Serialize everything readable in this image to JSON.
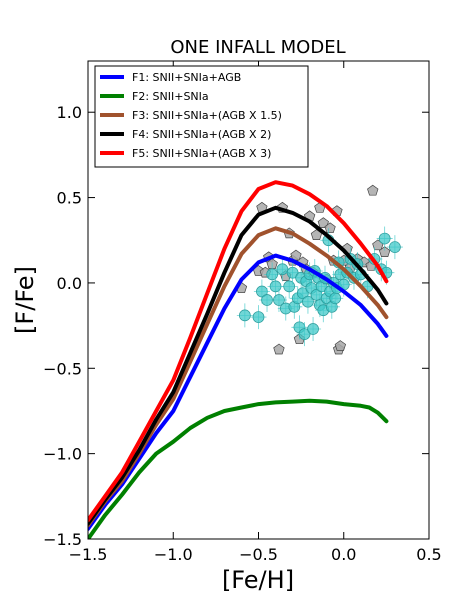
{
  "chart_data": {
    "type": "line",
    "title": "ONE INFALL MODEL",
    "xlabel": "[Fe/H]",
    "ylabel": "[F/Fe]",
    "xlim": [
      -1.5,
      0.5
    ],
    "ylim": [
      -1.5,
      1.3
    ],
    "xticks": [
      -1.5,
      -1.0,
      -0.5,
      0.0,
      0.5
    ],
    "xtick_labels": [
      "−1.5",
      "−1.0",
      "−0.5",
      "0.0",
      "0.5"
    ],
    "yticks": [
      -1.5,
      -1.0,
      -0.5,
      0.0,
      0.5,
      1.0
    ],
    "ytick_labels": [
      "−1.5",
      "−1.0",
      "−0.5",
      "0.0",
      "0.5",
      "1.0"
    ],
    "grid": false,
    "legend_position": "top-left",
    "series": [
      {
        "name": "F1: SNII+SNIa+AGB",
        "color": "#0000ff",
        "points": [
          [
            -1.5,
            -1.44
          ],
          [
            -1.4,
            -1.3
          ],
          [
            -1.3,
            -1.18
          ],
          [
            -1.2,
            -1.03
          ],
          [
            -1.1,
            -0.88
          ],
          [
            -1.0,
            -0.75
          ],
          [
            -0.9,
            -0.55
          ],
          [
            -0.8,
            -0.35
          ],
          [
            -0.7,
            -0.15
          ],
          [
            -0.6,
            0.02
          ],
          [
            -0.5,
            0.12
          ],
          [
            -0.4,
            0.16
          ],
          [
            -0.3,
            0.13
          ],
          [
            -0.2,
            0.08
          ],
          [
            -0.1,
            0.02
          ],
          [
            0.0,
            -0.05
          ],
          [
            0.1,
            -0.13
          ],
          [
            0.2,
            -0.24
          ],
          [
            0.25,
            -0.31
          ]
        ]
      },
      {
        "name": "F2: SNII+SNIa",
        "color": "#008000",
        "points": [
          [
            -1.5,
            -1.5
          ],
          [
            -1.4,
            -1.36
          ],
          [
            -1.3,
            -1.24
          ],
          [
            -1.2,
            -1.11
          ],
          [
            -1.1,
            -1.0
          ],
          [
            -1.0,
            -0.93
          ],
          [
            -0.9,
            -0.85
          ],
          [
            -0.8,
            -0.79
          ],
          [
            -0.7,
            -0.75
          ],
          [
            -0.6,
            -0.73
          ],
          [
            -0.5,
            -0.71
          ],
          [
            -0.4,
            -0.7
          ],
          [
            -0.3,
            -0.695
          ],
          [
            -0.2,
            -0.69
          ],
          [
            -0.1,
            -0.695
          ],
          [
            0.0,
            -0.71
          ],
          [
            0.1,
            -0.72
          ],
          [
            0.15,
            -0.73
          ],
          [
            0.2,
            -0.76
          ],
          [
            0.25,
            -0.81
          ]
        ]
      },
      {
        "name": "F3: SNII+SNIa+(AGB X 1.5)",
        "color": "#a0522d",
        "points": [
          [
            -1.5,
            -1.42
          ],
          [
            -1.4,
            -1.28
          ],
          [
            -1.3,
            -1.16
          ],
          [
            -1.2,
            -1.0
          ],
          [
            -1.1,
            -0.83
          ],
          [
            -1.0,
            -0.68
          ],
          [
            -0.9,
            -0.46
          ],
          [
            -0.8,
            -0.24
          ],
          [
            -0.7,
            -0.02
          ],
          [
            -0.6,
            0.17
          ],
          [
            -0.5,
            0.28
          ],
          [
            -0.4,
            0.32
          ],
          [
            -0.3,
            0.29
          ],
          [
            -0.2,
            0.23
          ],
          [
            -0.1,
            0.16
          ],
          [
            0.0,
            0.08
          ],
          [
            0.1,
            -0.02
          ],
          [
            0.2,
            -0.13
          ],
          [
            0.25,
            -0.2
          ]
        ]
      },
      {
        "name": "F4: SNII+SNIa+(AGB X 2)",
        "color": "#000000",
        "points": [
          [
            -1.5,
            -1.41
          ],
          [
            -1.4,
            -1.27
          ],
          [
            -1.3,
            -1.14
          ],
          [
            -1.2,
            -0.98
          ],
          [
            -1.1,
            -0.8
          ],
          [
            -1.0,
            -0.64
          ],
          [
            -0.9,
            -0.41
          ],
          [
            -0.8,
            -0.18
          ],
          [
            -0.7,
            0.06
          ],
          [
            -0.6,
            0.28
          ],
          [
            -0.5,
            0.4
          ],
          [
            -0.4,
            0.44
          ],
          [
            -0.3,
            0.41
          ],
          [
            -0.2,
            0.36
          ],
          [
            -0.1,
            0.28
          ],
          [
            0.0,
            0.19
          ],
          [
            0.1,
            0.08
          ],
          [
            0.2,
            -0.04
          ],
          [
            0.25,
            -0.12
          ]
        ]
      },
      {
        "name": "F5: SNII+SNIa+(AGB X 3)",
        "color": "#ff0000",
        "points": [
          [
            -1.5,
            -1.39
          ],
          [
            -1.4,
            -1.25
          ],
          [
            -1.3,
            -1.11
          ],
          [
            -1.2,
            -0.93
          ],
          [
            -1.1,
            -0.75
          ],
          [
            -1.0,
            -0.57
          ],
          [
            -0.9,
            -0.32
          ],
          [
            -0.8,
            -0.06
          ],
          [
            -0.7,
            0.2
          ],
          [
            -0.6,
            0.42
          ],
          [
            -0.5,
            0.55
          ],
          [
            -0.4,
            0.59
          ],
          [
            -0.3,
            0.57
          ],
          [
            -0.2,
            0.52
          ],
          [
            -0.1,
            0.45
          ],
          [
            0.0,
            0.35
          ],
          [
            0.1,
            0.23
          ],
          [
            0.2,
            0.1
          ],
          [
            0.25,
            0.01
          ]
        ]
      }
    ],
    "observations_cyan": {
      "color": "#40c8c8",
      "points": [
        [
          -0.58,
          -0.19
        ],
        [
          -0.5,
          -0.2
        ],
        [
          -0.48,
          -0.05
        ],
        [
          -0.45,
          -0.1
        ],
        [
          -0.42,
          0.05
        ],
        [
          -0.4,
          -0.02
        ],
        [
          -0.38,
          -0.1
        ],
        [
          -0.36,
          0.08
        ],
        [
          -0.34,
          -0.15
        ],
        [
          -0.32,
          -0.02
        ],
        [
          -0.3,
          0.06
        ],
        [
          -0.29,
          -0.14
        ],
        [
          -0.27,
          -0.09
        ],
        [
          -0.26,
          -0.26
        ],
        [
          -0.25,
          0.03
        ],
        [
          -0.24,
          -0.06
        ],
        [
          -0.23,
          -0.3
        ],
        [
          -0.22,
          0.01
        ],
        [
          -0.21,
          -0.11
        ],
        [
          -0.2,
          0.05
        ],
        [
          -0.19,
          -0.03
        ],
        [
          -0.18,
          -0.27
        ],
        [
          -0.17,
          0.07
        ],
        [
          -0.16,
          -0.07
        ],
        [
          -0.15,
          0.03
        ],
        [
          -0.14,
          -0.13
        ],
        [
          -0.13,
          -0.02
        ],
        [
          -0.12,
          -0.16
        ],
        [
          -0.11,
          0.03
        ],
        [
          -0.1,
          -0.09
        ],
        [
          -0.09,
          0.25
        ],
        [
          -0.08,
          -0.05
        ],
        [
          -0.07,
          -0.14
        ],
        [
          -0.06,
          0.0
        ],
        [
          -0.05,
          -0.09
        ],
        [
          -0.04,
          -0.03
        ],
        [
          -0.03,
          0.12
        ],
        [
          -0.02,
          0.05
        ],
        [
          0.0,
          -0.01
        ],
        [
          0.02,
          0.06
        ],
        [
          0.04,
          0.14
        ],
        [
          0.06,
          0.03
        ],
        [
          0.08,
          0.11
        ],
        [
          0.1,
          0.05
        ],
        [
          0.14,
          -0.02
        ],
        [
          0.18,
          0.14
        ],
        [
          0.22,
          0.08
        ],
        [
          0.24,
          0.26
        ],
        [
          0.25,
          0.06
        ],
        [
          0.3,
          0.21
        ]
      ]
    },
    "observations_gray": {
      "color": "#a8a8a8",
      "points": [
        [
          -0.6,
          -0.03
        ],
        [
          -0.5,
          0.07
        ],
        [
          -0.48,
          0.44
        ],
        [
          -0.46,
          0.06
        ],
        [
          -0.44,
          0.15
        ],
        [
          -0.42,
          0.11
        ],
        [
          -0.38,
          -0.39
        ],
        [
          -0.36,
          0.44
        ],
        [
          -0.34,
          0.04
        ],
        [
          -0.32,
          0.29
        ],
        [
          -0.3,
          0.13
        ],
        [
          -0.28,
          0.16
        ],
        [
          -0.26,
          -0.33
        ],
        [
          -0.24,
          0.12
        ],
        [
          -0.22,
          0.08
        ],
        [
          -0.2,
          0.39
        ],
        [
          -0.18,
          0.06
        ],
        [
          -0.16,
          0.28
        ],
        [
          -0.14,
          0.44
        ],
        [
          -0.12,
          0.35
        ],
        [
          -0.1,
          0.02
        ],
        [
          -0.08,
          0.32
        ],
        [
          -0.06,
          0.13
        ],
        [
          -0.04,
          0.42
        ],
        [
          -0.03,
          -0.39
        ],
        [
          -0.02,
          -0.37
        ],
        [
          0.0,
          0.13
        ],
        [
          0.02,
          0.2
        ],
        [
          0.04,
          0.09
        ],
        [
          0.08,
          0.14
        ],
        [
          0.12,
          0.12
        ],
        [
          0.16,
          0.1
        ],
        [
          0.17,
          0.54
        ],
        [
          0.2,
          0.22
        ],
        [
          0.24,
          0.18
        ]
      ]
    }
  }
}
